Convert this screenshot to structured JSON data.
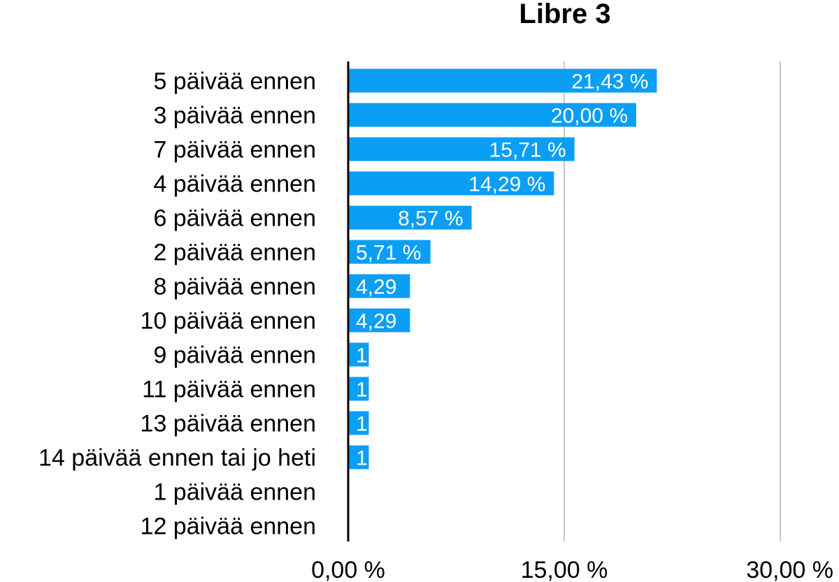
{
  "chart_data": {
    "type": "bar",
    "orientation": "horizontal",
    "title": "Libre 3",
    "xlabel": "",
    "ylabel": "",
    "xlim": [
      0,
      30
    ],
    "x_ticks": [
      {
        "value": 0,
        "label": "0,00 %"
      },
      {
        "value": 15,
        "label": "15,00 %"
      },
      {
        "value": 30,
        "label": "30,00 %"
      }
    ],
    "grid": true,
    "legend": "none",
    "categories": [
      "5 päivää ennen",
      "3 päivää ennen",
      "7 päivää ennen",
      "4 päivää ennen",
      "6 päivää ennen",
      "2 päivää ennen",
      "8 päivää ennen",
      "10 päivää ennen",
      "9 päivää ennen",
      "11 päivää ennen",
      "13 päivää ennen",
      "14 päivää ennen tai jo heti",
      "1 päivää ennen",
      "12 päivää ennen"
    ],
    "values": [
      21.43,
      20.0,
      15.71,
      14.29,
      8.57,
      5.71,
      4.29,
      4.29,
      1.43,
      1.43,
      1.43,
      1.43,
      0,
      0
    ],
    "data_labels": [
      "21,43 %",
      "20,00 %",
      "15,71 %",
      "14,29 %",
      "8,57 %",
      "5,71 %",
      "4,29",
      "4,29",
      "1",
      "1",
      "1",
      "1",
      "",
      ""
    ],
    "colors": {
      "bar": "#0A9EF5",
      "axis": "#000000",
      "grid": "#C8C8C8",
      "label_text": "#FFFFFF"
    }
  }
}
